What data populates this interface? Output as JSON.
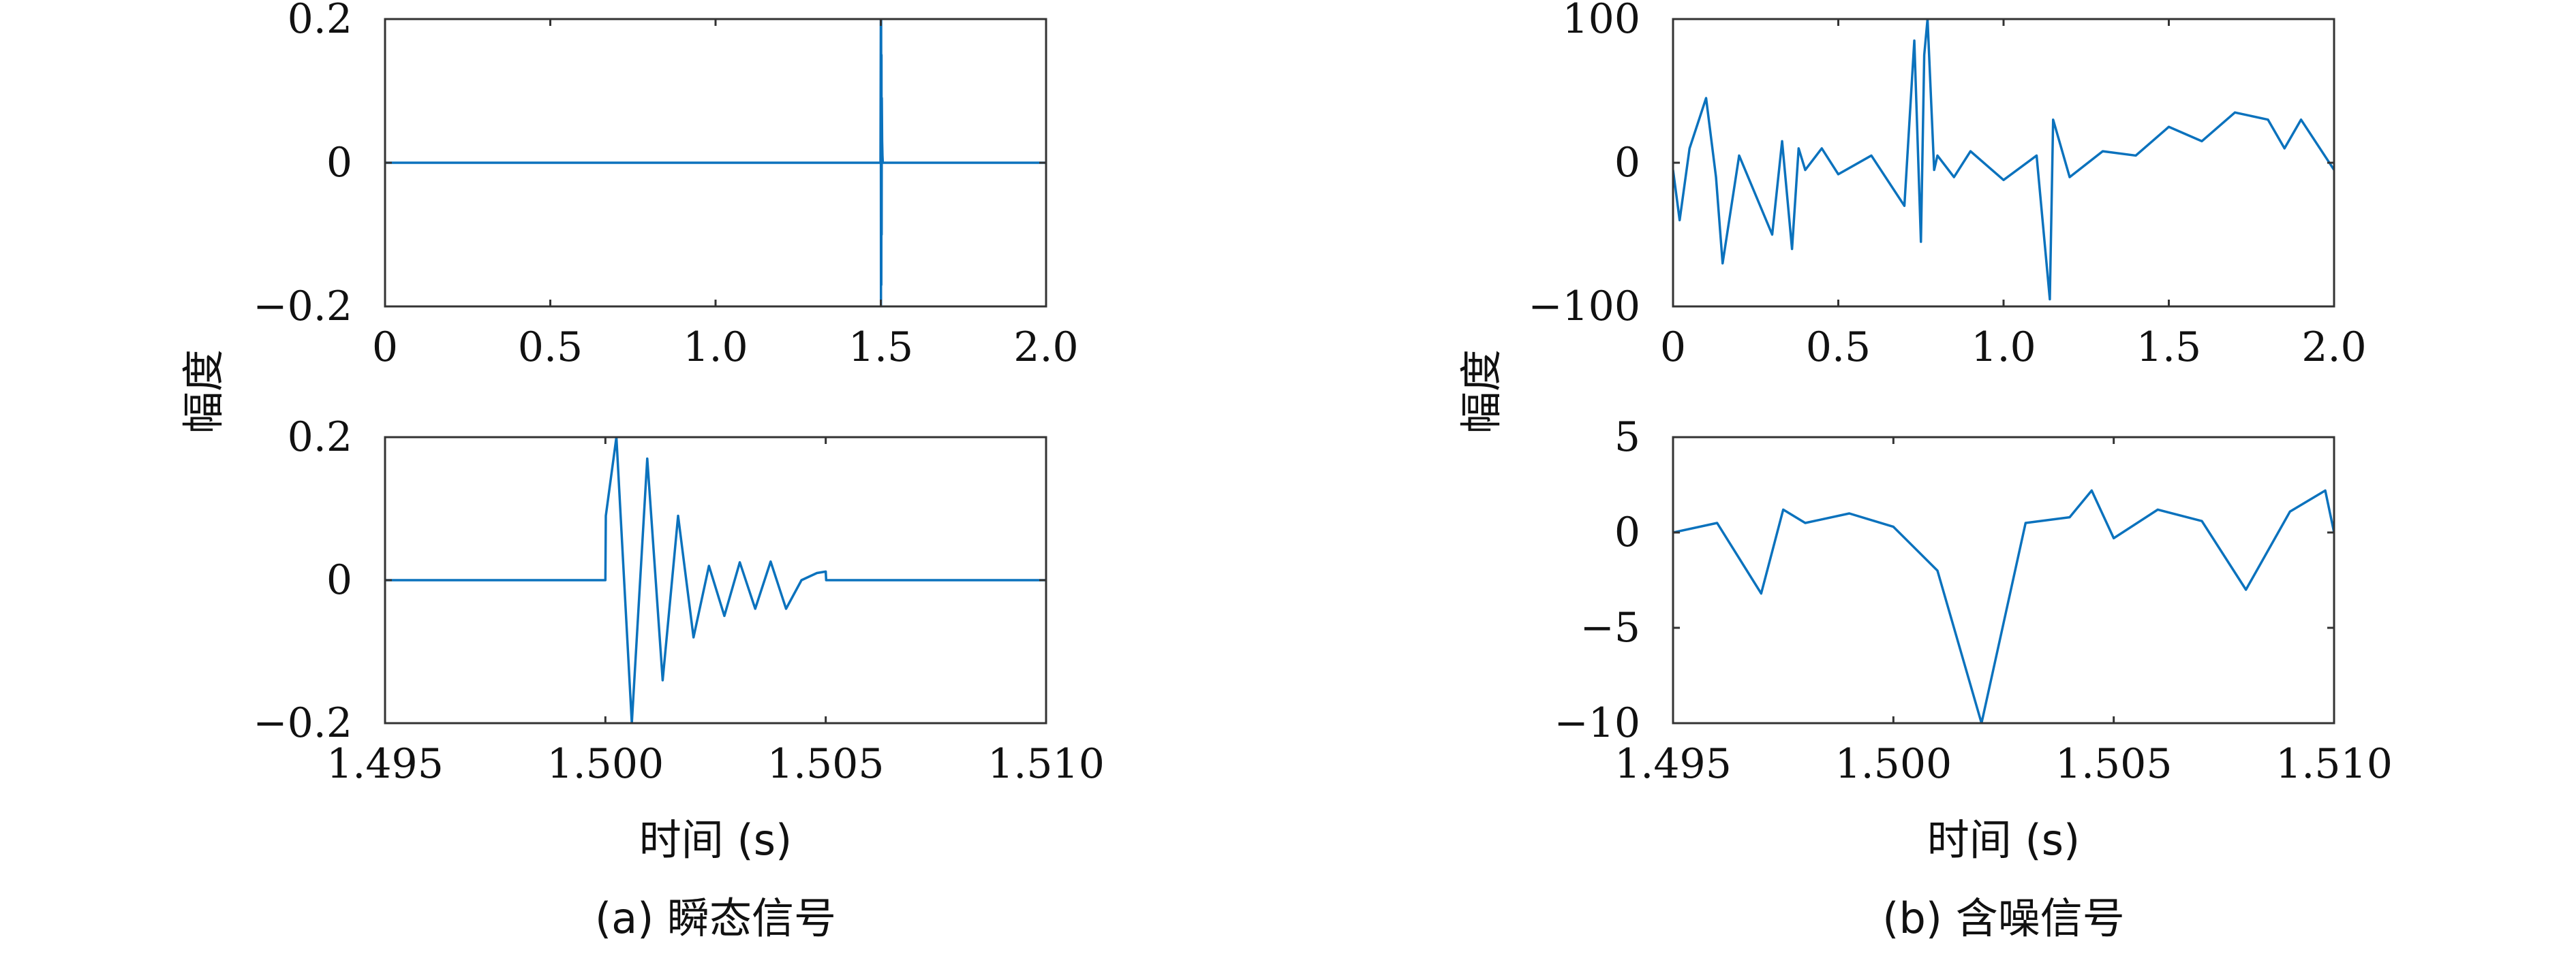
{
  "panels": [
    {
      "caption": "(a) 瞬态信号",
      "ylabel": "幅度",
      "xlabel": "时间 (s)",
      "plots": [
        {
          "xlim": [
            0,
            2.0
          ],
          "ylim": [
            -0.2,
            0.2
          ],
          "xticks": [
            0,
            0.5,
            1.0,
            1.5,
            2.0
          ],
          "xtick_labels": [
            "0",
            "0.5",
            "1.0",
            "1.5",
            "2.0"
          ],
          "yticks": [
            -0.2,
            0,
            0.2
          ],
          "ytick_labels": [
            "−0.2",
            "0",
            "0.2"
          ]
        },
        {
          "xlim": [
            1.495,
            1.51
          ],
          "ylim": [
            -0.2,
            0.2
          ],
          "xticks": [
            1.495,
            1.5,
            1.505,
            1.51
          ],
          "xtick_labels": [
            "1.495",
            "1.500",
            "1.505",
            "1.510"
          ],
          "yticks": [
            -0.2,
            0,
            0.2
          ],
          "ytick_labels": [
            "−0.2",
            "0",
            "0.2"
          ]
        }
      ]
    },
    {
      "caption": "(b) 含噪信号",
      "ylabel": "幅度",
      "xlabel": "时间 (s)",
      "plots": [
        {
          "xlim": [
            0,
            2.0
          ],
          "ylim": [
            -100,
            100
          ],
          "xticks": [
            0,
            0.5,
            1.0,
            1.5,
            2.0
          ],
          "xtick_labels": [
            "0",
            "0.5",
            "1.0",
            "1.5",
            "2.0"
          ],
          "yticks": [
            -100,
            0,
            100
          ],
          "ytick_labels": [
            "−100",
            "0",
            "100"
          ]
        },
        {
          "xlim": [
            1.495,
            1.51
          ],
          "ylim": [
            -10,
            5
          ],
          "xticks": [
            1.495,
            1.5,
            1.505,
            1.51
          ],
          "xtick_labels": [
            "1.495",
            "1.500",
            "1.505",
            "1.510"
          ],
          "yticks": [
            -10,
            -5,
            0,
            5
          ],
          "ytick_labels": [
            "−10",
            "−5",
            "0",
            "5"
          ]
        }
      ]
    }
  ],
  "chart_data": [
    {
      "type": "line",
      "panel": "(a) 瞬态信号",
      "xlim": [
        0,
        2.0
      ],
      "ylim": [
        -0.2,
        0.2
      ],
      "x": [
        0,
        1.499,
        1.5,
        1.5005,
        1.501,
        1.5015,
        1.502,
        1.5025,
        1.503,
        1.504,
        1.505,
        1.506,
        2.0
      ],
      "y": [
        0,
        0,
        0.2,
        -0.2,
        0.2,
        -0.17,
        0.15,
        -0.1,
        0.09,
        0.03,
        0.01,
        0,
        0
      ]
    },
    {
      "type": "line",
      "panel": "(a) 瞬态信号",
      "xlim": [
        1.495,
        1.51
      ],
      "ylim": [
        -0.2,
        0.2
      ],
      "x": [
        1.495,
        1.5,
        1.50001,
        1.50025,
        1.5006,
        1.50095,
        1.5013,
        1.50165,
        1.502,
        1.50235,
        1.5027,
        1.50305,
        1.5034,
        1.50375,
        1.5041,
        1.50445,
        1.5048,
        1.505,
        1.50501,
        1.51
      ],
      "y": [
        0,
        0,
        0.09,
        0.2,
        -0.2,
        0.17,
        -0.14,
        0.09,
        -0.08,
        0.02,
        -0.05,
        0.025,
        -0.04,
        0.026,
        -0.04,
        0.0,
        0.01,
        0.012,
        0,
        0
      ]
    },
    {
      "type": "line",
      "panel": "(b) 含噪信号",
      "xlim": [
        0,
        2.0
      ],
      "ylim": [
        -100,
        100
      ],
      "x": [
        0,
        0.02,
        0.05,
        0.1,
        0.13,
        0.15,
        0.2,
        0.3,
        0.33,
        0.36,
        0.38,
        0.4,
        0.45,
        0.5,
        0.6,
        0.7,
        0.73,
        0.75,
        0.76,
        0.77,
        0.79,
        0.8,
        0.85,
        0.9,
        1.0,
        1.1,
        1.14,
        1.15,
        1.2,
        1.3,
        1.4,
        1.5,
        1.6,
        1.7,
        1.8,
        1.85,
        1.9,
        2.0
      ],
      "y": [
        -5,
        -40,
        10,
        45,
        -10,
        -70,
        5,
        -50,
        15,
        -60,
        10,
        -5,
        10,
        -8,
        5,
        -30,
        85,
        -55,
        75,
        100,
        -5,
        5,
        -10,
        8,
        -12,
        5,
        -95,
        30,
        -10,
        8,
        5,
        25,
        15,
        35,
        30,
        10,
        30,
        -5
      ]
    },
    {
      "type": "line",
      "panel": "(b) 含噪信号",
      "xlim": [
        1.495,
        1.51
      ],
      "ylim": [
        -10,
        5
      ],
      "x": [
        1.495,
        1.496,
        1.497,
        1.4975,
        1.498,
        1.499,
        1.5,
        1.501,
        1.502,
        1.503,
        1.504,
        1.5045,
        1.505,
        1.506,
        1.507,
        1.508,
        1.509,
        1.5098,
        1.51
      ],
      "y": [
        0,
        0.5,
        -3.2,
        1.2,
        0.5,
        1.0,
        0.3,
        -2.0,
        -10,
        0.5,
        0.8,
        2.2,
        -0.3,
        1.2,
        0.6,
        -3.0,
        1.1,
        2.2,
        0
      ]
    }
  ]
}
